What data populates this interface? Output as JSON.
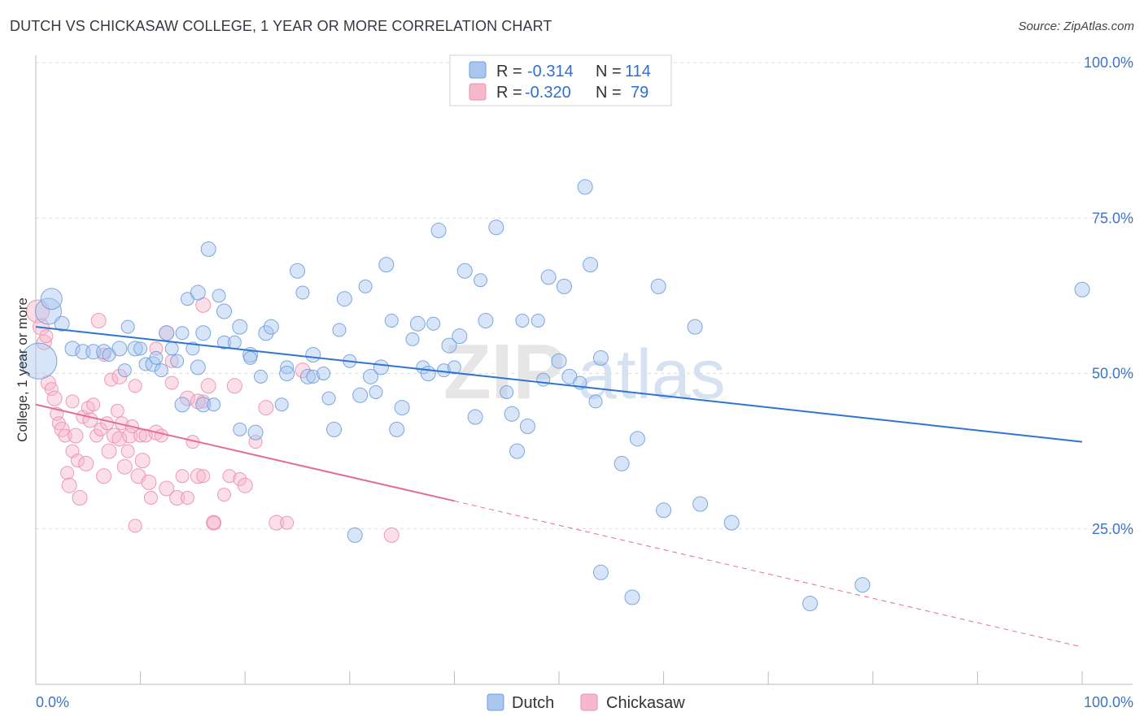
{
  "title": "DUTCH VS CHICKASAW COLLEGE, 1 YEAR OR MORE CORRELATION CHART",
  "source": "Source: ZipAtlas.com",
  "colors": {
    "dutch_fill": "#a9c6ef",
    "dutch_stroke": "#6f9fdc",
    "dutch_line": "#2f74d0",
    "chickasaw_fill": "#f6b8cb",
    "chickasaw_stroke": "#ec8fae",
    "chickasaw_line": "#e36d97",
    "tick_text": "#3f73c4",
    "grid": "#dcdcdc"
  },
  "legend_stats": [
    {
      "series": "Dutch",
      "r_label": "R =",
      "r_value": "-0.314",
      "n_label": "N =",
      "n_value": "114"
    },
    {
      "series": "Chickasaw",
      "r_label": "R =",
      "r_value": "-0.320",
      "n_label": "N =",
      "n_value": "79"
    }
  ],
  "watermark": {
    "zip": "ZIP",
    "atlas": "atlas"
  },
  "chart_data": {
    "type": "scatter",
    "title": "DUTCH VS CHICKASAW COLLEGE, 1 YEAR OR MORE CORRELATION CHART",
    "xlabel": "",
    "ylabel": "College, 1 year or more",
    "xlim": [
      0,
      100
    ],
    "ylim": [
      0,
      105
    ],
    "x_tick_labels": [
      {
        "value": 0,
        "label": "0.0%"
      },
      {
        "value": 100,
        "label": "100.0%"
      }
    ],
    "y_tick_labels": [
      {
        "value": 25,
        "label": "25.0%"
      },
      {
        "value": 50,
        "label": "50.0%"
      },
      {
        "value": 75,
        "label": "75.0%"
      },
      {
        "value": 100,
        "label": "100.0%"
      }
    ],
    "legend": [
      "Dutch",
      "Chickasaw"
    ],
    "series": [
      {
        "name": "Dutch",
        "trend": {
          "x0": 0,
          "y0": 57.5,
          "x1": 100,
          "y1": 39.0
        },
        "points": [
          [
            0.3,
            52.0,
            22
          ],
          [
            1.2,
            60.0,
            16
          ],
          [
            1.5,
            62.0,
            13
          ],
          [
            2.5,
            58.0,
            9
          ],
          [
            3.5,
            54.0,
            9
          ],
          [
            4.5,
            53.5,
            9
          ],
          [
            5.5,
            53.5,
            9
          ],
          [
            6.5,
            53.5,
            9
          ],
          [
            7.0,
            53.0,
            8
          ],
          [
            8.0,
            54.0,
            9
          ],
          [
            8.5,
            50.5,
            8
          ],
          [
            8.8,
            57.5,
            8
          ],
          [
            9.5,
            54.0,
            9
          ],
          [
            10.0,
            54.0,
            8
          ],
          [
            10.5,
            51.5,
            8
          ],
          [
            11.2,
            51.5,
            9
          ],
          [
            11.5,
            52.5,
            8
          ],
          [
            12.0,
            50.5,
            8
          ],
          [
            12.5,
            56.5,
            9
          ],
          [
            13.0,
            54.0,
            8
          ],
          [
            13.5,
            52.0,
            8
          ],
          [
            14.0,
            56.5,
            8
          ],
          [
            14.0,
            45.0,
            9
          ],
          [
            14.5,
            62.0,
            8
          ],
          [
            15.0,
            54.0,
            8
          ],
          [
            15.5,
            51.0,
            9
          ],
          [
            15.5,
            63.0,
            9
          ],
          [
            16.0,
            56.5,
            9
          ],
          [
            16.0,
            45.0,
            9
          ],
          [
            16.5,
            70.0,
            9
          ],
          [
            17.0,
            45.0,
            8
          ],
          [
            17.5,
            62.5,
            8
          ],
          [
            18.0,
            55.0,
            8
          ],
          [
            18.0,
            60.0,
            9
          ],
          [
            19.0,
            55.0,
            8
          ],
          [
            19.5,
            57.5,
            9
          ],
          [
            19.5,
            41.0,
            8
          ],
          [
            20.5,
            53.0,
            9
          ],
          [
            20.5,
            52.5,
            8
          ],
          [
            21.0,
            40.5,
            9
          ],
          [
            21.5,
            49.5,
            8
          ],
          [
            22.0,
            56.5,
            9
          ],
          [
            22.5,
            57.5,
            9
          ],
          [
            23.5,
            45.0,
            8
          ],
          [
            24.0,
            51.0,
            8
          ],
          [
            24.0,
            50.0,
            9
          ],
          [
            25.0,
            66.5,
            9
          ],
          [
            25.5,
            63.0,
            8
          ],
          [
            26.0,
            49.5,
            9
          ],
          [
            26.5,
            49.5,
            8
          ],
          [
            26.5,
            53.0,
            9
          ],
          [
            27.5,
            50.0,
            8
          ],
          [
            28.0,
            46.0,
            8
          ],
          [
            28.5,
            41.0,
            9
          ],
          [
            29.0,
            57.0,
            8
          ],
          [
            29.5,
            62.0,
            9
          ],
          [
            30.0,
            52.0,
            8
          ],
          [
            31.0,
            46.5,
            9
          ],
          [
            31.5,
            64.0,
            8
          ],
          [
            32.0,
            49.5,
            9
          ],
          [
            32.5,
            47.0,
            8
          ],
          [
            33.0,
            51.0,
            9
          ],
          [
            33.5,
            67.5,
            9
          ],
          [
            34.0,
            58.5,
            8
          ],
          [
            34.5,
            41.0,
            9
          ],
          [
            35.0,
            44.5,
            9
          ],
          [
            36.0,
            55.5,
            8
          ],
          [
            36.5,
            58.0,
            9
          ],
          [
            37.0,
            51.0,
            8
          ],
          [
            37.5,
            50.0,
            9
          ],
          [
            38.0,
            58.0,
            8
          ],
          [
            38.5,
            73.0,
            9
          ],
          [
            39.0,
            50.5,
            8
          ],
          [
            39.5,
            54.5,
            9
          ],
          [
            40.0,
            51.0,
            8
          ],
          [
            40.5,
            56.0,
            9
          ],
          [
            41.0,
            66.5,
            9
          ],
          [
            42.0,
            43.0,
            9
          ],
          [
            42.5,
            65.0,
            8
          ],
          [
            43.0,
            58.5,
            9
          ],
          [
            44.0,
            73.5,
            9
          ],
          [
            45.0,
            47.0,
            8
          ],
          [
            45.5,
            43.5,
            9
          ],
          [
            46.0,
            37.5,
            9
          ],
          [
            46.5,
            58.5,
            8
          ],
          [
            47.0,
            41.5,
            9
          ],
          [
            48.0,
            58.5,
            8
          ],
          [
            48.5,
            49.0,
            8
          ],
          [
            49.0,
            65.5,
            9
          ],
          [
            50.0,
            52.0,
            9
          ],
          [
            50.5,
            64.0,
            9
          ],
          [
            51.0,
            49.5,
            9
          ],
          [
            52.0,
            48.5,
            8
          ],
          [
            52.5,
            80.0,
            9
          ],
          [
            53.0,
            67.5,
            9
          ],
          [
            53.5,
            45.5,
            8
          ],
          [
            54.0,
            52.5,
            9
          ],
          [
            56.0,
            35.5,
            9
          ],
          [
            57.5,
            39.5,
            9
          ],
          [
            59.5,
            64.0,
            9
          ],
          [
            60.0,
            28.0,
            9
          ],
          [
            63.0,
            57.5,
            9
          ],
          [
            63.5,
            29.0,
            9
          ],
          [
            66.5,
            26.0,
            9
          ],
          [
            54.0,
            18.0,
            9
          ],
          [
            57.0,
            14.0,
            9
          ],
          [
            74.0,
            13.0,
            9
          ],
          [
            79.0,
            16.0,
            9
          ],
          [
            30.5,
            24.0,
            9
          ],
          [
            100.0,
            63.5,
            9
          ]
        ]
      },
      {
        "name": "Chickasaw",
        "trend": {
          "x0": 0,
          "y0": 45.0,
          "x1": 40,
          "y1": 29.5,
          "dash_to": {
            "x": 100,
            "y": 6.0
          }
        },
        "points": [
          [
            0.2,
            60.0,
            14
          ],
          [
            0.5,
            57.5,
            10
          ],
          [
            0.8,
            55.0,
            9
          ],
          [
            1.0,
            56.0,
            8
          ],
          [
            1.2,
            48.5,
            9
          ],
          [
            1.5,
            47.5,
            8
          ],
          [
            1.8,
            46.0,
            9
          ],
          [
            2.0,
            43.5,
            8
          ],
          [
            2.2,
            42.0,
            8
          ],
          [
            2.5,
            41.0,
            9
          ],
          [
            2.8,
            40.0,
            8
          ],
          [
            3.0,
            34.0,
            8
          ],
          [
            3.2,
            32.0,
            9
          ],
          [
            3.5,
            37.5,
            8
          ],
          [
            3.8,
            40.0,
            9
          ],
          [
            4.0,
            36.0,
            8
          ],
          [
            4.2,
            30.0,
            9
          ],
          [
            4.5,
            43.0,
            8
          ],
          [
            4.8,
            35.5,
            9
          ],
          [
            5.0,
            44.5,
            8
          ],
          [
            5.2,
            42.5,
            9
          ],
          [
            5.5,
            45.0,
            8
          ],
          [
            5.8,
            40.0,
            8
          ],
          [
            6.0,
            58.5,
            9
          ],
          [
            6.2,
            41.0,
            8
          ],
          [
            6.5,
            33.5,
            9
          ],
          [
            6.8,
            42.0,
            8
          ],
          [
            7.0,
            37.5,
            9
          ],
          [
            7.2,
            49.0,
            8
          ],
          [
            7.5,
            40.0,
            9
          ],
          [
            7.8,
            44.0,
            8
          ],
          [
            8.0,
            39.5,
            9
          ],
          [
            8.2,
            42.0,
            8
          ],
          [
            8.5,
            35.0,
            9
          ],
          [
            8.8,
            37.5,
            8
          ],
          [
            9.0,
            40.0,
            9
          ],
          [
            9.2,
            41.5,
            8
          ],
          [
            9.5,
            48.0,
            8
          ],
          [
            9.8,
            33.5,
            9
          ],
          [
            10.0,
            40.0,
            8
          ],
          [
            10.2,
            36.0,
            9
          ],
          [
            10.5,
            40.0,
            8
          ],
          [
            10.8,
            32.5,
            9
          ],
          [
            11.0,
            30.0,
            8
          ],
          [
            11.5,
            40.5,
            9
          ],
          [
            12.0,
            40.0,
            8
          ],
          [
            12.5,
            31.5,
            9
          ],
          [
            13.0,
            48.5,
            8
          ],
          [
            13.5,
            30.0,
            9
          ],
          [
            14.0,
            33.5,
            8
          ],
          [
            14.5,
            46.0,
            9
          ],
          [
            15.0,
            39.0,
            8
          ],
          [
            15.5,
            33.5,
            9
          ],
          [
            16.0,
            45.5,
            8
          ],
          [
            16.5,
            48.0,
            9
          ],
          [
            17.0,
            26.0,
            9
          ],
          [
            18.5,
            33.5,
            8
          ],
          [
            19.0,
            48.0,
            9
          ],
          [
            19.5,
            33.0,
            8
          ],
          [
            20.0,
            32.0,
            9
          ],
          [
            21.0,
            39.0,
            8
          ],
          [
            22.0,
            44.5,
            9
          ],
          [
            23.0,
            26.0,
            9
          ],
          [
            24.0,
            26.0,
            8
          ],
          [
            25.5,
            50.5,
            9
          ],
          [
            9.5,
            25.5,
            8
          ],
          [
            14.5,
            30.0,
            8
          ],
          [
            16.0,
            33.5,
            8
          ],
          [
            17.0,
            26.0,
            8
          ],
          [
            18.0,
            30.5,
            8
          ],
          [
            12.5,
            56.5,
            9
          ],
          [
            15.5,
            45.5,
            9
          ],
          [
            13.0,
            52.0,
            8
          ],
          [
            8.0,
            49.5,
            9
          ],
          [
            11.5,
            54.0,
            8
          ],
          [
            6.5,
            53.0,
            8
          ],
          [
            16.0,
            61.0,
            9
          ],
          [
            34.0,
            24.0,
            9
          ],
          [
            3.5,
            45.5,
            8
          ]
        ]
      }
    ]
  },
  "bottom_legend": [
    {
      "label": "Dutch",
      "series": "Dutch"
    },
    {
      "label": "Chickasaw",
      "series": "Chickasaw"
    }
  ]
}
